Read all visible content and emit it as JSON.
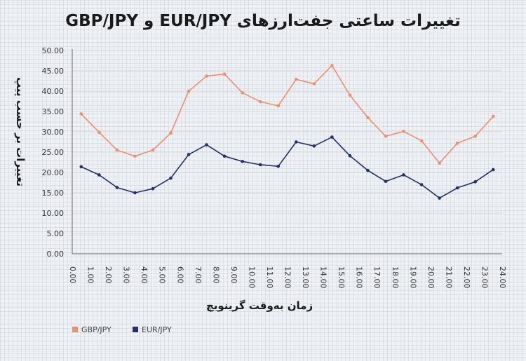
{
  "chart_data": {
    "type": "line",
    "title": "تغییرات ساعتی جفت‌ارزهای EUR/JPY و GBP/JPY",
    "xlabel": "زمان به‌وقت گرینویچ",
    "ylabel": "تغییرات بر حسب پیپ",
    "xlim": [
      0,
      24
    ],
    "ylim": [
      0,
      50
    ],
    "x_ticks": [
      "0.00",
      "1.00",
      "2.00",
      "3.00",
      "4.00",
      "5.00",
      "6.00",
      "7.00",
      "8.00",
      "9.00",
      "10.00",
      "11.00",
      "12.00",
      "13.00",
      "14.00",
      "15.00",
      "16.00",
      "17.00",
      "18.00",
      "19.00",
      "20.00",
      "21.00",
      "22.00",
      "23.00",
      "24.00"
    ],
    "y_ticks": [
      "0.00",
      "5.00",
      "10.00",
      "15.00",
      "20.00",
      "25.00",
      "30.00",
      "35.00",
      "40.00",
      "45.00",
      "50.00"
    ],
    "x": [
      0.5,
      1.5,
      2.5,
      3.5,
      4.5,
      5.5,
      6.5,
      7.5,
      8.5,
      9.5,
      10.5,
      11.5,
      12.5,
      13.5,
      14.5,
      15.5,
      16.5,
      17.5,
      18.5,
      19.5,
      20.5,
      21.5,
      22.5,
      23.5
    ],
    "series": [
      {
        "name": "GBP/JPY",
        "color": "#ef8f72",
        "values": [
          34.4,
          29.9,
          25.5,
          24.0,
          25.5,
          29.7,
          40.0,
          43.7,
          44.2,
          39.6,
          37.4,
          36.4,
          42.9,
          41.8,
          46.3,
          39.0,
          33.5,
          28.9,
          30.1,
          27.8,
          22.3,
          27.2,
          28.9,
          33.8
        ]
      },
      {
        "name": "EUR/JPY",
        "color": "#22306b",
        "values": [
          21.4,
          19.4,
          16.3,
          15.0,
          16.0,
          18.6,
          24.4,
          26.8,
          24.0,
          22.7,
          21.9,
          21.5,
          27.5,
          26.5,
          28.7,
          24.1,
          20.5,
          17.8,
          19.4,
          17.0,
          13.7,
          16.2,
          17.7,
          20.7
        ]
      }
    ],
    "grid": true,
    "legend_position": "bottom-left"
  }
}
